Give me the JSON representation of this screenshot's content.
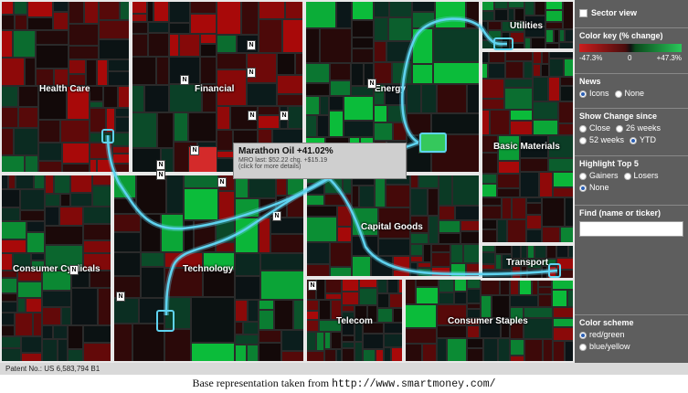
{
  "treemap": {
    "sectors": [
      {
        "name": "Health Care"
      },
      {
        "name": "Financial"
      },
      {
        "name": "Energy"
      },
      {
        "name": "Utilities"
      },
      {
        "name": "Basic Materials"
      },
      {
        "name": "Consumer Cyclicals"
      },
      {
        "name": "Technology"
      },
      {
        "name": "Capital Goods"
      },
      {
        "name": "Transport"
      },
      {
        "name": "Telecom"
      },
      {
        "name": "Consumer Staples"
      }
    ],
    "news_icon_label": "N",
    "icon_news": "news-icon"
  },
  "tooltip": {
    "title": "Marathon Oil +41.02%",
    "detail": "MRO last: $52.22 chg. +$15.19",
    "hint": "(click for more details)"
  },
  "panel": {
    "sector_view_label": "Sector view",
    "color_key": {
      "title": "Color key (% change)",
      "min": "-47.3%",
      "mid": "0",
      "max": "+47.3%"
    },
    "news": {
      "title": "News",
      "options": [
        "Icons",
        "None"
      ],
      "selected": "Icons"
    },
    "show_change": {
      "title": "Show Change since",
      "options": [
        "Close",
        "26 weeks",
        "52 weeks",
        "YTD"
      ],
      "selected": "YTD"
    },
    "highlight": {
      "title": "Highlight Top 5",
      "options": [
        "Gainers",
        "Losers",
        "None"
      ],
      "selected": "None"
    },
    "find": {
      "title": "Find (name or ticker)",
      "value": ""
    },
    "color_scheme": {
      "title": "Color scheme",
      "options": [
        "red/green",
        "blue/yellow"
      ],
      "selected": "red/green"
    }
  },
  "footer": {
    "patent": "Patent No.: US 6,583,794 B1"
  },
  "caption": {
    "text": "Base representation taken from ",
    "url": "http://www.smartmoney.com/"
  },
  "colors": {
    "flow_line": "#5fd3f0",
    "gain_strong": "#2ac85a",
    "loss_strong": "#cc1e1e",
    "panel_bg": "#5e5e5e"
  }
}
